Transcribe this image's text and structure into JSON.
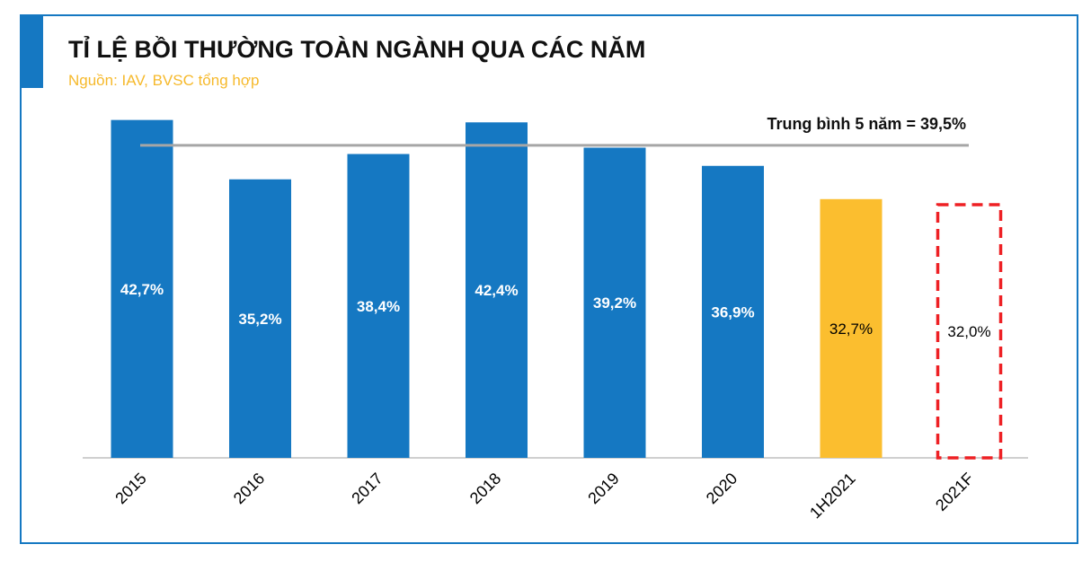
{
  "header": {
    "title": "TỈ LỆ BỒI THƯỜNG TOÀN NGÀNH QUA CÁC NĂM",
    "subtitle": "Nguồn: IAV, BVSC tổng hợp"
  },
  "colors": {
    "actual": "#1578c2",
    "partial": "#fbbe2f",
    "forecast_border": "#ee2024",
    "average_line": "#a6a6a6"
  },
  "chart_data": {
    "type": "bar",
    "categories": [
      "2015",
      "2016",
      "2017",
      "2018",
      "2019",
      "2020",
      "1H2021",
      "2021F"
    ],
    "values": [
      42.7,
      35.2,
      38.4,
      42.4,
      39.2,
      36.9,
      32.7,
      32.0
    ],
    "value_labels": [
      "42,7%",
      "35,2%",
      "38,4%",
      "42,4%",
      "39,2%",
      "36,9%",
      "32,7%",
      "32,0%"
    ],
    "bar_styles": [
      "actual",
      "actual",
      "actual",
      "actual",
      "actual",
      "actual",
      "partial",
      "forecast"
    ],
    "average": {
      "value": 39.5,
      "label": "Trung bình 5 năm = 39,5%"
    },
    "ylim": [
      0,
      43
    ],
    "grid": false,
    "legend": "none",
    "xlabel": "",
    "ylabel": ""
  }
}
